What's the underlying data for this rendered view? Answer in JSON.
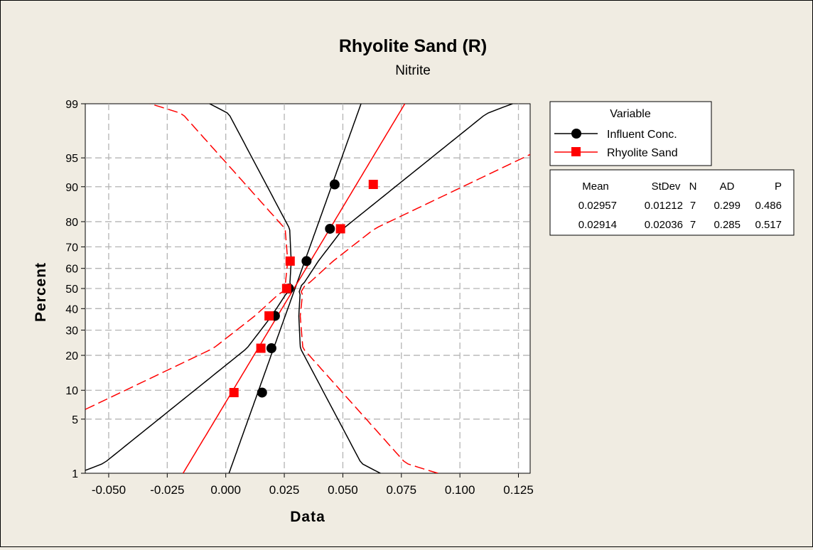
{
  "chart_data": {
    "type": "scatter",
    "subtype": "probability-plot",
    "title": "Rhyolite Sand (R)",
    "subtitle": "Nitrite",
    "xlabel": "Data",
    "ylabel": "Percent",
    "xlim": [
      -0.06,
      0.13
    ],
    "x_ticks": [
      -0.05,
      -0.025,
      0.0,
      0.025,
      0.05,
      0.075,
      0.1,
      0.125
    ],
    "x_tick_labels": [
      "-0.050",
      "-0.025",
      "0.000",
      "0.025",
      "0.050",
      "0.075",
      "0.100",
      "0.125"
    ],
    "y_scale": "normal-probability",
    "ylim": [
      1,
      99
    ],
    "y_ticks": [
      1,
      5,
      10,
      20,
      30,
      40,
      50,
      60,
      70,
      80,
      90,
      95,
      99
    ],
    "y_tick_labels": [
      "1",
      "5",
      "10",
      "20",
      "30",
      "40",
      "50",
      "60",
      "70",
      "80",
      "90",
      "95",
      "99"
    ],
    "grid": true,
    "legend_title": "Variable",
    "series": [
      {
        "name": "Influent Conc.",
        "color": "#000000",
        "marker": "circle",
        "mean": 0.02957,
        "stdev": 0.01212,
        "x": [
          0.0155,
          0.0195,
          0.021,
          0.027,
          0.0345,
          0.0445,
          0.0465
        ],
        "y": [
          9.5,
          22.6,
          36.5,
          50,
          63.5,
          77.4,
          90.5
        ],
        "ci_half_width": [
          0.0282,
          0.0114,
          0.0058,
          0.0023,
          0.0058,
          0.0114,
          0.0282
        ]
      },
      {
        "name": "Rhyolite Sand",
        "color": "#ff0000",
        "marker": "square",
        "mean": 0.02914,
        "stdev": 0.02036,
        "x": [
          0.0035,
          0.015,
          0.0185,
          0.026,
          0.0275,
          0.049,
          0.063
        ],
        "y": [
          9.5,
          22.6,
          36.5,
          50,
          63.5,
          77.4,
          90.5
        ],
        "ci_half_width": [
          0.0474,
          0.0191,
          0.0097,
          0.0039,
          0.0097,
          0.0191,
          0.0474
        ]
      }
    ],
    "stats_table": {
      "headers": [
        "Mean",
        "StDev",
        "N",
        "AD",
        "P"
      ],
      "rows": [
        [
          "0.02957",
          "0.01212",
          "7",
          "0.299",
          "0.486"
        ],
        [
          "0.02914",
          "0.02036",
          "7",
          "0.285",
          "0.517"
        ]
      ]
    }
  }
}
